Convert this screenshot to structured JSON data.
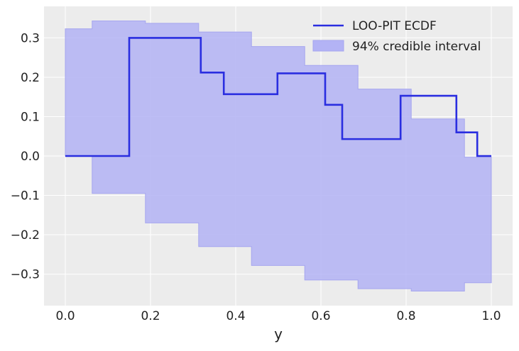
{
  "chart_data": {
    "type": "line",
    "title": "",
    "xlabel": "y",
    "ylabel": "",
    "xlim": [
      -0.05,
      1.05
    ],
    "ylim": [
      -0.38,
      0.38
    ],
    "x_ticks": [
      0.0,
      0.2,
      0.4,
      0.6,
      0.8,
      1.0
    ],
    "x_tick_labels": [
      "0.0",
      "0.2",
      "0.4",
      "0.6",
      "0.8",
      "1.0"
    ],
    "y_ticks": [
      0.3,
      0.2,
      0.1,
      0.0,
      -0.1,
      -0.2,
      -0.3
    ],
    "y_tick_labels": [
      "0.3",
      "0.2",
      "0.1",
      "0.0",
      "−0.1",
      "−0.2",
      "−0.3"
    ],
    "grid": true,
    "legend_position": "top-right",
    "series": [
      {
        "name": "LOO-PIT ECDF",
        "kind": "step",
        "color": "#2a2ee0",
        "x": [
          0.0,
          0.15,
          0.15,
          0.318,
          0.318,
          0.372,
          0.372,
          0.498,
          0.498,
          0.61,
          0.61,
          0.65,
          0.65,
          0.787,
          0.787,
          0.918,
          0.918,
          0.967,
          0.967,
          1.0
        ],
        "y": [
          0.0,
          0.0,
          0.3,
          0.3,
          0.212,
          0.212,
          0.157,
          0.157,
          0.21,
          0.21,
          0.13,
          0.13,
          0.043,
          0.043,
          0.153,
          0.153,
          0.06,
          0.06,
          0.0,
          0.0
        ]
      }
    ],
    "band": {
      "name": "94% credible interval",
      "color": "#b3b3f5",
      "edge_color": "#a6a6ef",
      "x": [
        0.0,
        0.063,
        0.063,
        0.188,
        0.188,
        0.313,
        0.313,
        0.437,
        0.437,
        0.562,
        0.562,
        0.687,
        0.687,
        0.812,
        0.812,
        0.937,
        0.937,
        1.0
      ],
      "upper": [
        0.323,
        0.323,
        0.343,
        0.343,
        0.337,
        0.337,
        0.315,
        0.315,
        0.278,
        0.278,
        0.23,
        0.23,
        0.17,
        0.17,
        0.094,
        0.094,
        -0.003,
        -0.003
      ],
      "lower": [
        0.0,
        0.0,
        -0.095,
        -0.095,
        -0.17,
        -0.17,
        -0.23,
        -0.23,
        -0.278,
        -0.278,
        -0.315,
        -0.315,
        -0.337,
        -0.337,
        -0.343,
        -0.343,
        -0.322,
        -0.322
      ]
    },
    "background_color": "#ececec"
  }
}
